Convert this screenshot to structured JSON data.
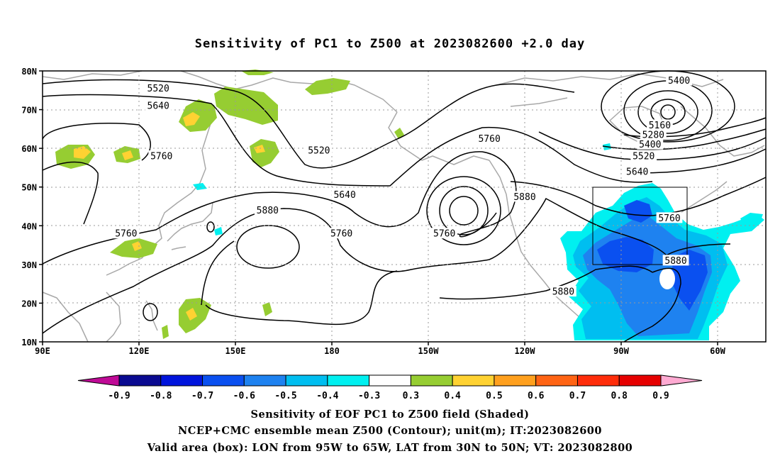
{
  "title": "Sensitivity of PC1 to Z500 at 2023082600 +2.0 day",
  "map": {
    "lon_ticks": [
      "90E",
      "120E",
      "150E",
      "180",
      "150W",
      "120W",
      "90W",
      "60W"
    ],
    "lat_ticks": [
      "80N",
      "70N",
      "60N",
      "50N",
      "40N",
      "30N",
      "20N",
      "10N"
    ],
    "lon_range": [
      90,
      315
    ],
    "lat_range": [
      10,
      80
    ]
  },
  "contours": {
    "unit": "m",
    "labels": [
      {
        "text": "5520",
        "lon": 126,
        "lat": 75.5
      },
      {
        "text": "5640",
        "lon": 126,
        "lat": 71
      },
      {
        "text": "5760",
        "lon": 127,
        "lat": 58
      },
      {
        "text": "5760",
        "lon": 116,
        "lat": 38
      },
      {
        "text": "5880",
        "lon": 160,
        "lat": 44
      },
      {
        "text": "5520",
        "lon": 176,
        "lat": 59.5
      },
      {
        "text": "5640",
        "lon": 184,
        "lat": 48
      },
      {
        "text": "5760",
        "lon": 183,
        "lat": 38
      },
      {
        "text": "5760",
        "lon": 215,
        "lat": 38
      },
      {
        "text": "5760",
        "lon": 229,
        "lat": 62.5
      },
      {
        "text": "5880",
        "lon": 240,
        "lat": 47.5
      },
      {
        "text": "5880",
        "lon": 252,
        "lat": 23
      },
      {
        "text": "5400",
        "lon": 288,
        "lat": 77.5
      },
      {
        "text": "5160",
        "lon": 282,
        "lat": 66
      },
      {
        "text": "5280",
        "lon": 280,
        "lat": 63.5
      },
      {
        "text": "5400",
        "lon": 279,
        "lat": 61
      },
      {
        "text": "5520",
        "lon": 277,
        "lat": 58
      },
      {
        "text": "5640",
        "lon": 275,
        "lat": 54
      },
      {
        "text": "5760",
        "lon": 285,
        "lat": 42
      },
      {
        "text": "5880",
        "lon": 287,
        "lat": 31
      }
    ]
  },
  "valid_box": {
    "lon_min": 265,
    "lon_max": 295,
    "lat_min": 30,
    "lat_max": 50
  },
  "colorbar": {
    "labels": [
      "-0.9",
      "-0.8",
      "-0.7",
      "-0.6",
      "-0.5",
      "-0.4",
      "-0.3",
      "0.3",
      "0.4",
      "0.5",
      "0.6",
      "0.7",
      "0.8",
      "0.9"
    ],
    "colors": [
      "#bf0a96",
      "#0a0a91",
      "#0014dc",
      "#0a50f0",
      "#1e82f0",
      "#00bef0",
      "#00f0f0",
      "#ffffff",
      "#96cd32",
      "#ffd232",
      "#ffa01e",
      "#ff6414",
      "#ff2d0a",
      "#e60000",
      "#ffaad2"
    ]
  },
  "captions": [
    "Sensitivity of EOF PC1 to Z500 field (Shaded)",
    "NCEP+CMC ensemble mean Z500 (Contour); unit(m); IT:2023082600",
    "Valid area (box): LON from 95W to 65W, LAT from 30N to 50N; VT: 2023082800"
  ]
}
